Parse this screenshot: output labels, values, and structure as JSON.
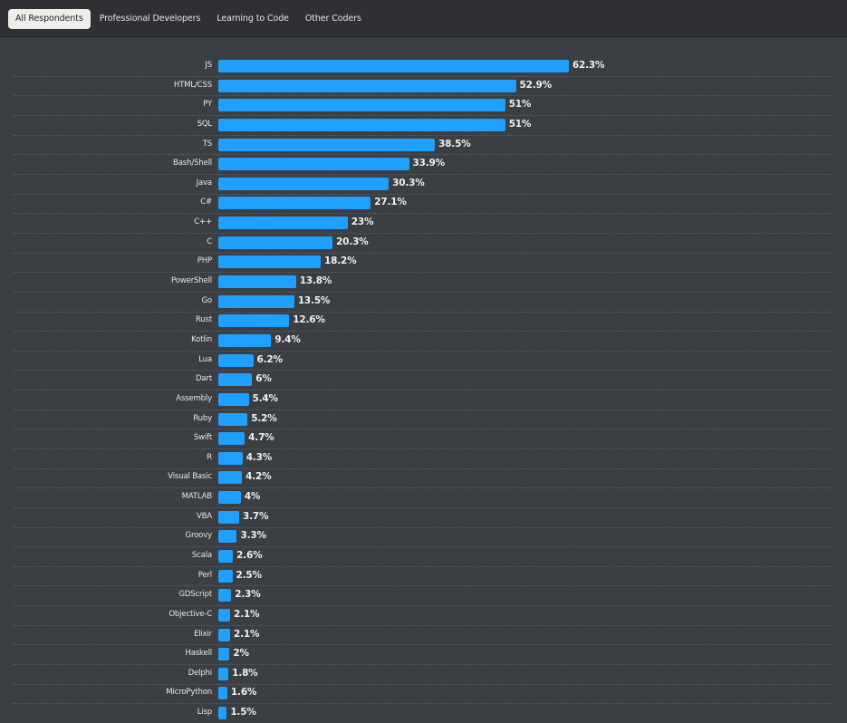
{
  "tabs": [
    {
      "label": "All Respondents",
      "active": true
    },
    {
      "label": "Professional Developers",
      "active": false
    },
    {
      "label": "Learning to Code",
      "active": false
    },
    {
      "label": "Other Coders",
      "active": false
    }
  ],
  "colors": {
    "bar": "#1fa0ff",
    "background": "#3b3e42",
    "header": "#2e3034"
  },
  "chart_data": {
    "type": "bar",
    "orientation": "horizontal",
    "title": "",
    "xlabel": "",
    "ylabel": "",
    "unit": "%",
    "xlim": [
      0,
      100
    ],
    "grid": false,
    "categories": [
      "JS",
      "HTML/CSS",
      "PY",
      "SQL",
      "TS",
      "Bash/Shell",
      "Java",
      "C#",
      "C++",
      "C",
      "PHP",
      "PowerShell",
      "Go",
      "Rust",
      "Kotlin",
      "Lua",
      "Dart",
      "Assembly",
      "Ruby",
      "Swift",
      "R",
      "Visual Basic",
      "MATLAB",
      "VBA",
      "Groovy",
      "Scala",
      "Perl",
      "GDScript",
      "Objective-C",
      "Elixir",
      "Haskell",
      "Delphi",
      "MicroPython",
      "Lisp"
    ],
    "values": [
      62.3,
      52.9,
      51,
      51,
      38.5,
      33.9,
      30.3,
      27.1,
      23,
      20.3,
      18.2,
      13.8,
      13.5,
      12.6,
      9.4,
      6.2,
      6,
      5.4,
      5.2,
      4.7,
      4.3,
      4.2,
      4,
      3.7,
      3.3,
      2.6,
      2.5,
      2.3,
      2.1,
      2.1,
      2,
      1.8,
      1.6,
      1.5
    ],
    "value_labels": [
      "62.3%",
      "52.9%",
      "51%",
      "51%",
      "38.5%",
      "33.9%",
      "30.3%",
      "27.1%",
      "23%",
      "20.3%",
      "18.2%",
      "13.8%",
      "13.5%",
      "12.6%",
      "9.4%",
      "6.2%",
      "6%",
      "5.4%",
      "5.2%",
      "4.7%",
      "4.3%",
      "4.2%",
      "4%",
      "3.7%",
      "3.3%",
      "2.6%",
      "2.5%",
      "2.3%",
      "2.1%",
      "2.1%",
      "2%",
      "1.8%",
      "1.6%",
      "1.5%"
    ]
  }
}
